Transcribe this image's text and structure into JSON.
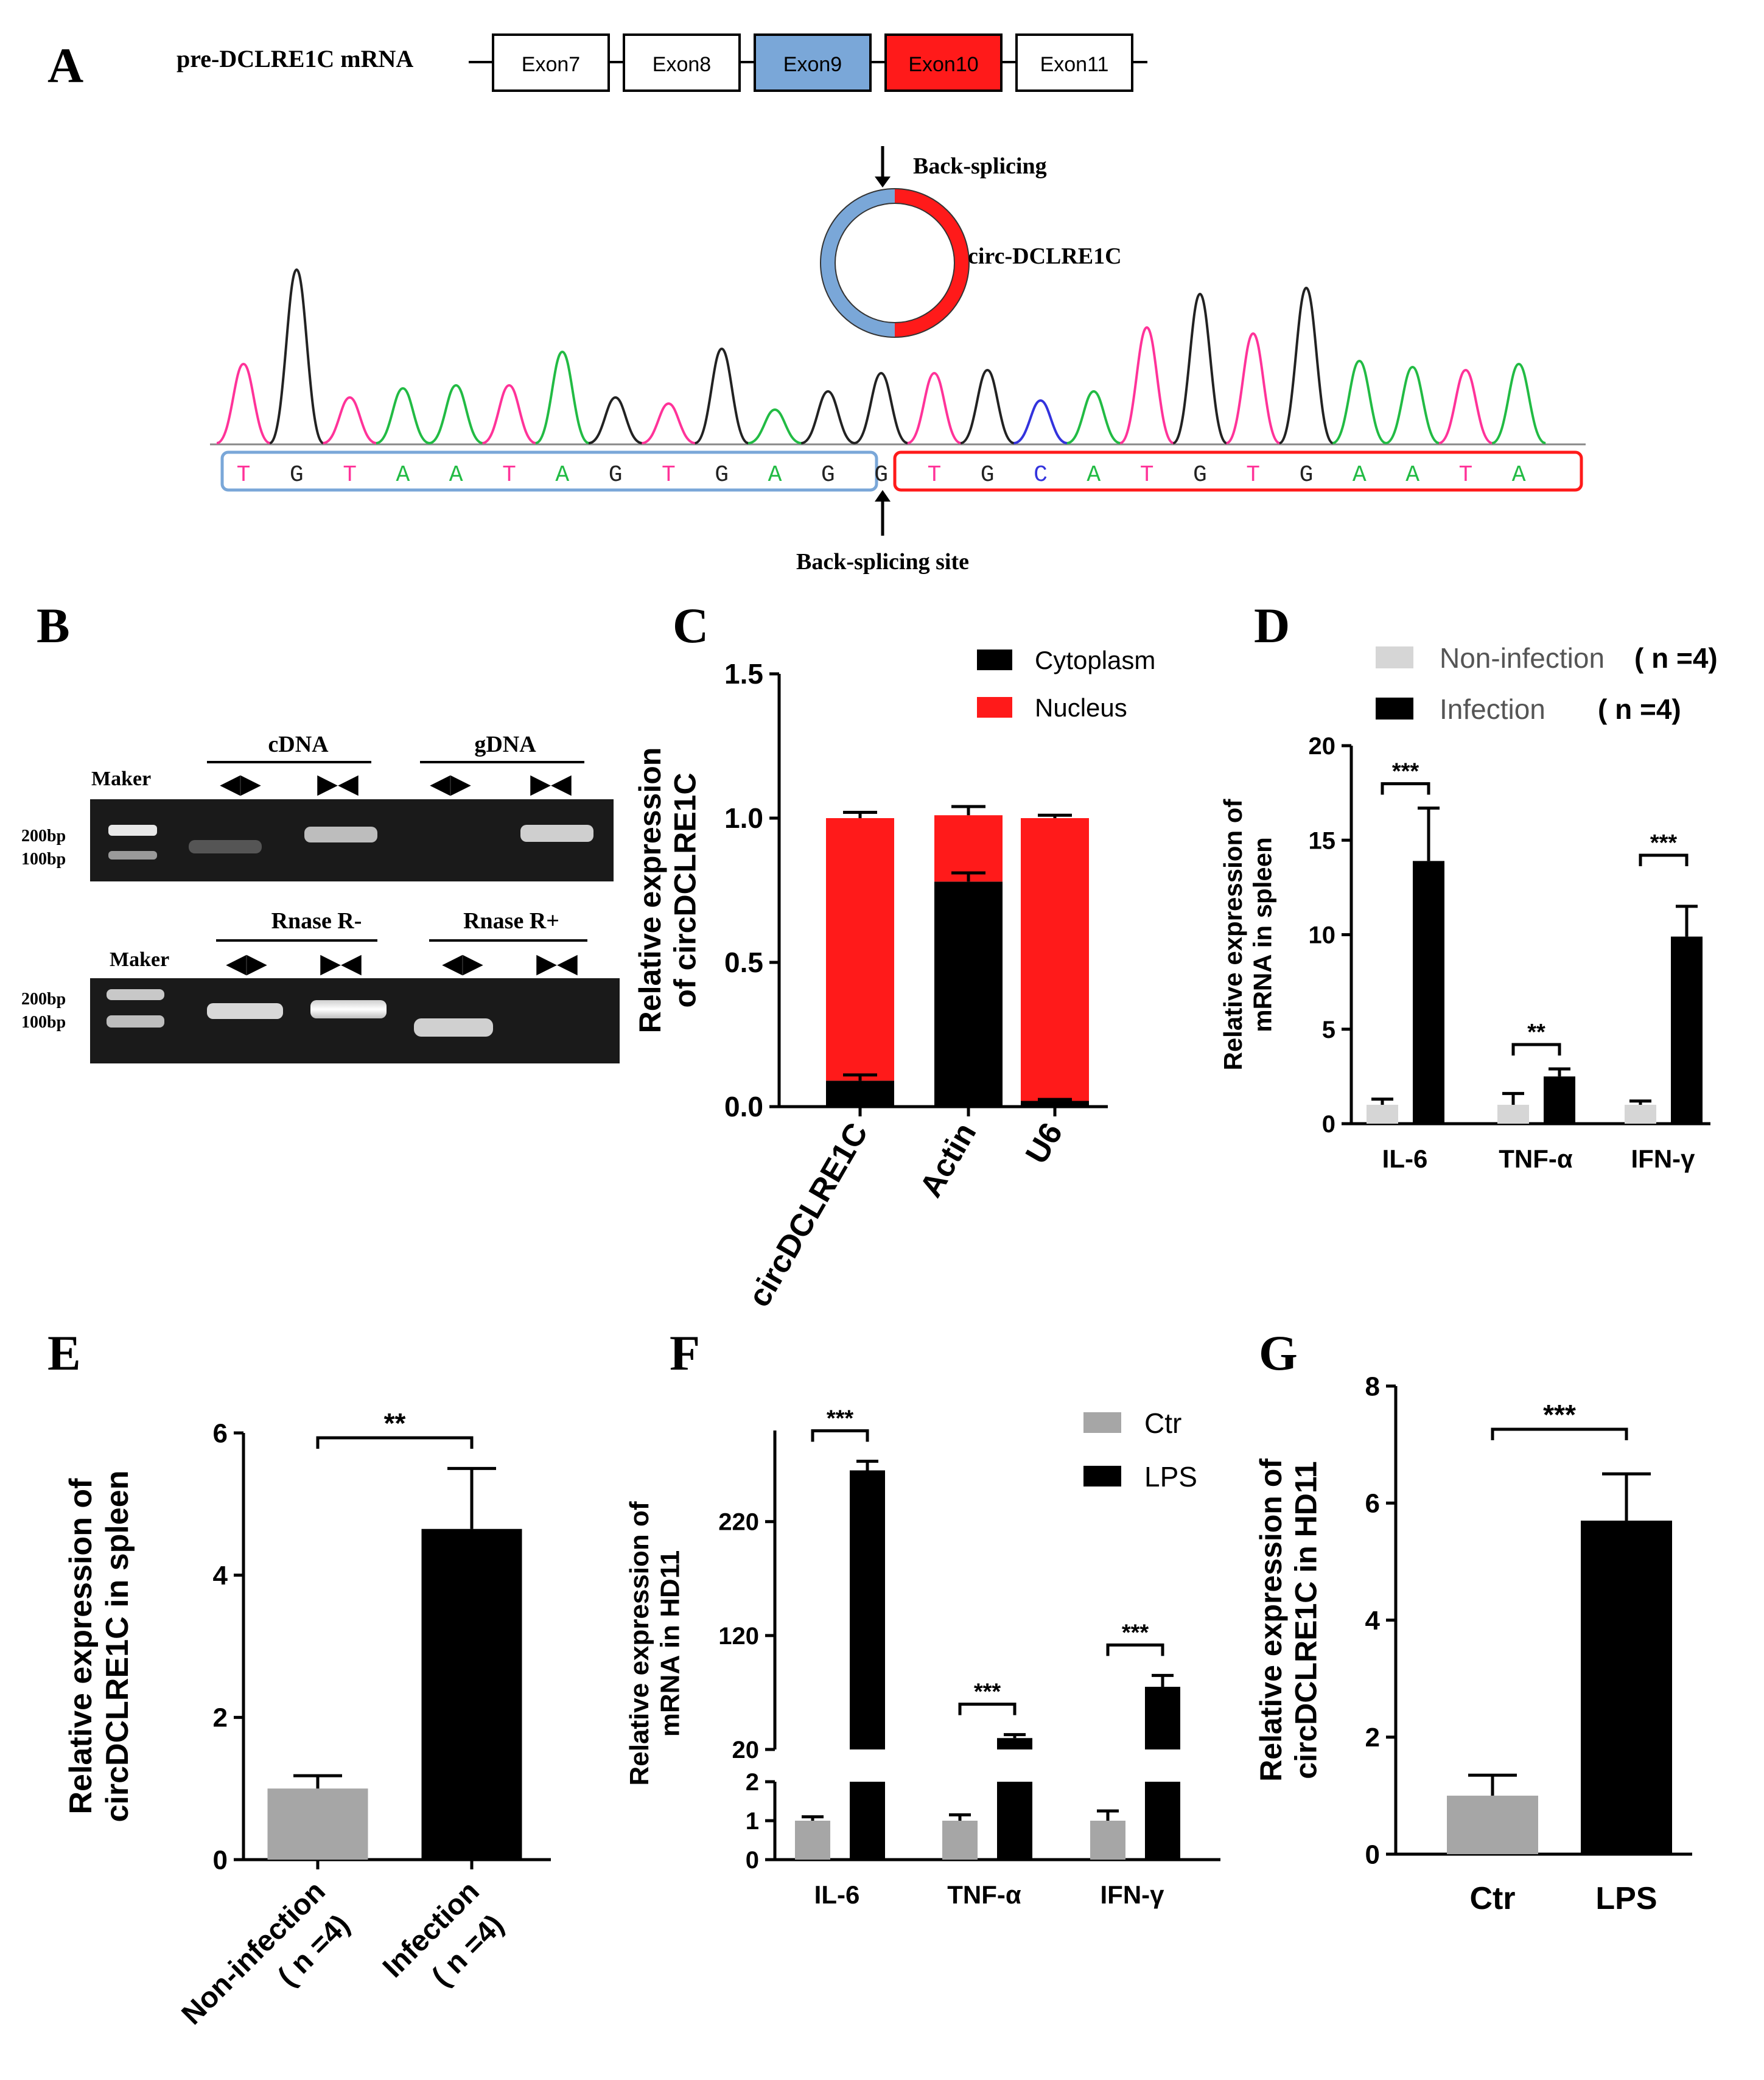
{
  "colors": {
    "red": "#ff1a1a",
    "blue": "#7aa7d8",
    "black": "#000000",
    "gray": "#a6a6a6",
    "lightgray": "#d6d6d6",
    "pink": "#ff3399",
    "green": "#22bb44",
    "seqblue": "#3333dd"
  },
  "panelA": {
    "letter": "A",
    "mrna_label": "pre-DCLRE1C mRNA",
    "exons": [
      {
        "label": "Exon7",
        "fill": "#ffffff"
      },
      {
        "label": "Exon8",
        "fill": "#ffffff"
      },
      {
        "label": "Exon9",
        "fill": "#7aa7d8"
      },
      {
        "label": "Exon10",
        "fill": "#ff1a1a"
      },
      {
        "label": "Exon11",
        "fill": "#ffffff"
      }
    ],
    "back_splicing": "Back-splicing",
    "circ_label": "circ-DCLRE1C",
    "site_label": "Back-splicing site",
    "seq_left": [
      "T",
      "G",
      "T",
      "A",
      "A",
      "T",
      "A",
      "G",
      "T",
      "G",
      "A",
      "G"
    ],
    "seq_right": [
      "G",
      "T",
      "G",
      "C",
      "A",
      "T",
      "G",
      "T",
      "G",
      "A",
      "A",
      "T",
      "A"
    ]
  },
  "panelB": {
    "letter": "B",
    "gel1": {
      "marker": "Maker",
      "group1": "cDNA",
      "group2": "gDNA",
      "size_hi": "200bp",
      "size_lo": "100bp"
    },
    "gel2": {
      "marker": "Maker",
      "group1": "Rnase R-",
      "group2": "Rnase R+",
      "size_hi": "200bp",
      "size_lo": "100bp"
    },
    "divergent": "◀▶",
    "convergent": "▶◀"
  },
  "chart_data": [
    {
      "panel": "C",
      "type": "bar",
      "stacked": true,
      "categories": [
        "circDCLRE1C",
        "Actin",
        "U6"
      ],
      "series": [
        {
          "name": "Cytoplasm",
          "values": [
            0.09,
            0.78,
            0.02
          ],
          "errors": [
            0.02,
            0.03,
            0.005
          ],
          "color": "#000000"
        },
        {
          "name": "Nucleus",
          "values": [
            0.91,
            0.23,
            0.98
          ],
          "errors": [
            0.02,
            0.03,
            0.01
          ],
          "color": "#ff1a1a"
        }
      ],
      "ylabel": "Relative expression of circDCLRE1C",
      "ylim": [
        0,
        1.5
      ],
      "yticks": [
        "0.0",
        "0.5",
        "1.0",
        "1.5"
      ],
      "legend": "top-right"
    },
    {
      "panel": "D",
      "type": "bar",
      "categories": [
        "IL-6",
        "TNF-α",
        "IFN-γ"
      ],
      "series": [
        {
          "name": "Non-infection",
          "n": "4",
          "values": [
            1.0,
            1.0,
            1.0
          ],
          "errors": [
            0.3,
            0.6,
            0.2
          ],
          "color": "#d6d6d6"
        },
        {
          "name": "Infection",
          "n": "4",
          "values": [
            13.9,
            2.5,
            9.9
          ],
          "errors": [
            2.8,
            0.4,
            1.6
          ],
          "color": "#000000"
        }
      ],
      "significance": [
        "***",
        "**",
        "***"
      ],
      "ylabel": "Relative expression of mRNA in spleen",
      "ylim": [
        0,
        20
      ],
      "yticks": [
        "0",
        "5",
        "10",
        "15",
        "20"
      ],
      "legend": "top"
    },
    {
      "panel": "E",
      "type": "bar",
      "categories": [
        "Non-infection",
        "Infection"
      ],
      "n": "4",
      "values": [
        1.0,
        4.65
      ],
      "errors": [
        0.18,
        0.85
      ],
      "colors": [
        "#a6a6a6",
        "#000000"
      ],
      "significance": "**",
      "ylabel": "Relative expression of circDCLRE1C in spleen",
      "ylim": [
        0,
        6
      ],
      "yticks": [
        "0",
        "2",
        "4",
        "6"
      ]
    },
    {
      "panel": "F",
      "type": "bar",
      "broken_axis": true,
      "categories": [
        "IL-6",
        "TNF-α",
        "IFN-γ"
      ],
      "series": [
        {
          "name": "Ctr",
          "values": [
            1.0,
            1.0,
            1.0
          ],
          "errors": [
            0.1,
            0.15,
            0.25
          ],
          "color": "#a6a6a6"
        },
        {
          "name": "LPS",
          "values": [
            265,
            30,
            75
          ],
          "errors": [
            8,
            3,
            10
          ],
          "color": "#000000"
        }
      ],
      "significance": [
        "***",
        "***",
        "***"
      ],
      "ylabel": "Relative expression of mRNA in HD11",
      "ylim_lower": [
        0,
        2
      ],
      "yticks_lower": [
        "0",
        "1",
        "2"
      ],
      "ylim_upper": [
        20,
        300
      ],
      "yticks_upper": [
        "20",
        "120",
        "220"
      ],
      "legend": "top-right"
    },
    {
      "panel": "G",
      "type": "bar",
      "categories": [
        "Ctr",
        "LPS"
      ],
      "values": [
        1.0,
        5.7
      ],
      "errors": [
        0.35,
        0.8
      ],
      "colors": [
        "#a6a6a6",
        "#000000"
      ],
      "significance": "***",
      "ylabel": "Relative expression of circDCLRE1C in HD11",
      "ylim": [
        0,
        8
      ],
      "yticks": [
        "0",
        "2",
        "4",
        "6",
        "8"
      ]
    }
  ]
}
